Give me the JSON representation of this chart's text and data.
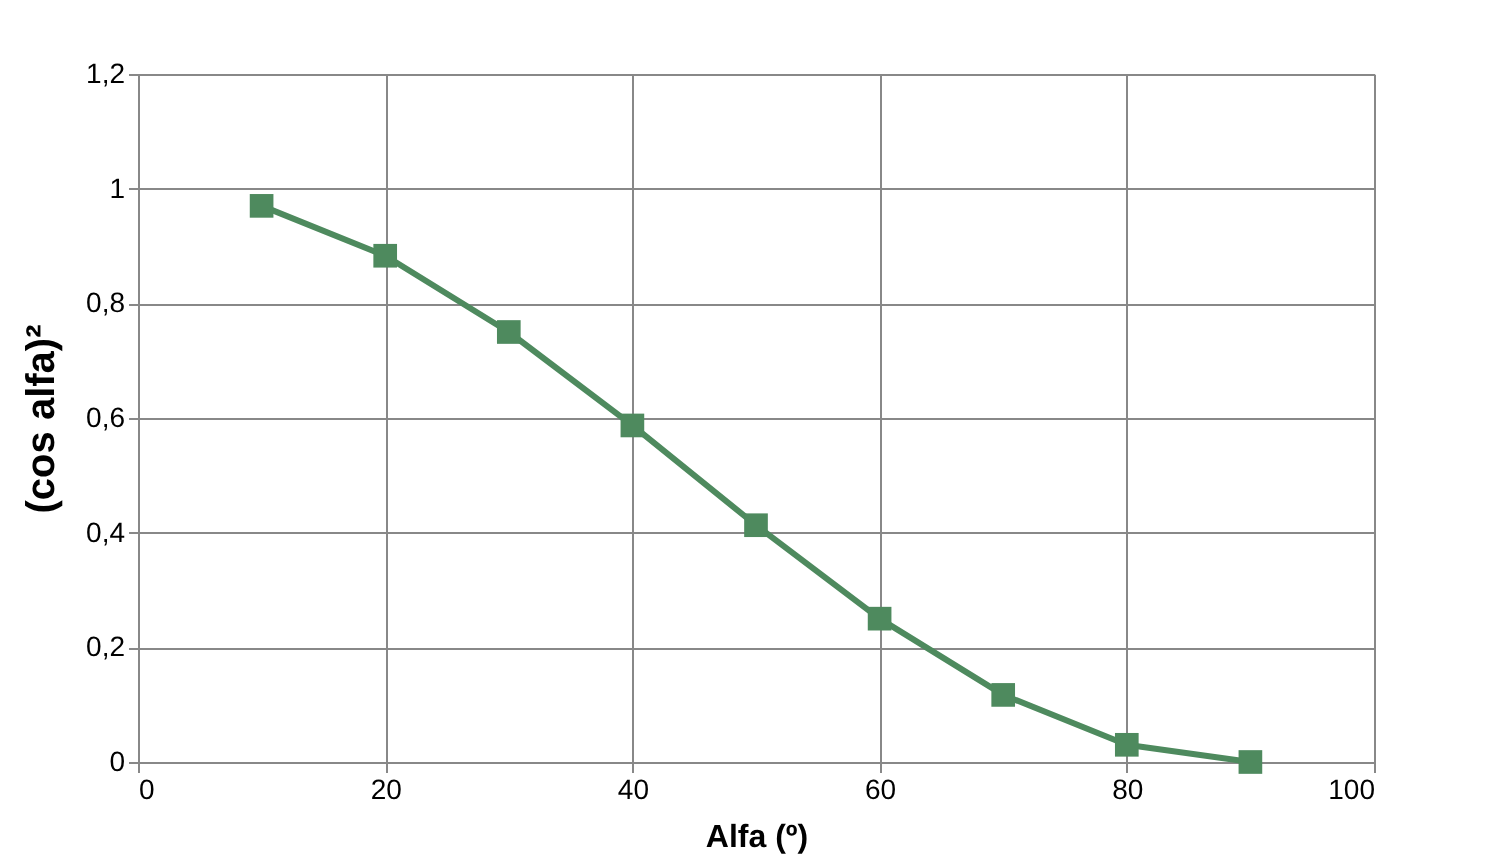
{
  "chart_data": {
    "type": "line",
    "xlabel": "Alfa (º)",
    "ylabel": "(cos alfa)²",
    "x": [
      10,
      20,
      30,
      40,
      50,
      60,
      70,
      80,
      90
    ],
    "series": [
      {
        "color": "#4e8a5e",
        "values": [
          0.97,
          0.883,
          0.75,
          0.587,
          0.413,
          0.25,
          0.117,
          0.03,
          0.0
        ]
      }
    ],
    "xlim": [
      0,
      100
    ],
    "xticks": [
      0,
      20,
      40,
      60,
      80,
      100
    ],
    "ylim": [
      0,
      1.2
    ],
    "yticks": [
      0,
      {
        "value": 0.2,
        "label": "0,2"
      },
      {
        "value": 0.4,
        "label": "0,4"
      },
      {
        "value": 0.6,
        "label": "0,6"
      },
      {
        "value": 0.8,
        "label": "0,8"
      },
      1,
      {
        "value": 1.2,
        "label": "1,2"
      }
    ],
    "grid": true,
    "marker": "square",
    "line_style": "solid"
  }
}
